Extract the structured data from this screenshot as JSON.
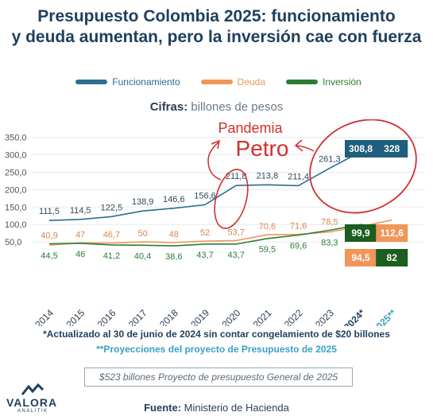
{
  "header": {
    "title_line1": "Presupuesto Colombia 2025: funcionamiento",
    "title_line2": "y deuda aumentan, pero la inversión cae con fuerza"
  },
  "legend": {
    "items": [
      {
        "label": "Funcionamiento",
        "color": "#2c6e8f"
      },
      {
        "label": "Deuda",
        "color": "#f0965a"
      },
      {
        "label": "Inversión",
        "color": "#2e7d32"
      }
    ]
  },
  "subtitle": {
    "bold": "Cifras:",
    "rest": " billones de pesos"
  },
  "annotations": {
    "pandemia": "Pandemia",
    "petro": "Petro"
  },
  "notes": {
    "note1": "*Actualizado al 30 de junio de 2024 sin contar congelamiento de $20 billones",
    "note2": "**Proyecciones del proyecto de Presupuesto de 2025",
    "box": "$523 billones Proyecto de presupuesto General de 2025"
  },
  "source": {
    "label": "Fuente:",
    "value": " Ministerio de Hacienda"
  },
  "logo": {
    "name": "VALORA",
    "sub": "ANALITIK"
  },
  "chart_data": {
    "type": "line",
    "categories": [
      "2014",
      "2015",
      "2016",
      "2017",
      "2018",
      "2019",
      "2020",
      "2021",
      "2022",
      "2023",
      "2024*",
      "2025**"
    ],
    "category_labels": [
      "2014",
      "2015",
      "2016",
      "2017",
      "2018",
      "2019",
      "2020",
      "2021",
      "2022",
      "2023",
      "2024*",
      "2025**"
    ],
    "yticks": [
      "350,0",
      "300,0",
      "250,0",
      "200,0",
      "150,0",
      "100,0",
      "50,0"
    ],
    "ytick_values": [
      350,
      300,
      250,
      200,
      150,
      100,
      50
    ],
    "ylim": [
      0,
      350
    ],
    "series": [
      {
        "name": "Funcionamiento",
        "color": "#2c6e8f",
        "values": [
          111.5,
          114.5,
          122.5,
          138.9,
          146.6,
          156.6,
          211.8,
          213.8,
          211.4,
          261.3,
          308.8,
          328
        ],
        "labels": [
          "111,5",
          "114,5",
          "122,5",
          "138,9",
          "146,6",
          "156,6",
          "211,8",
          "213,8",
          "211,4",
          "261,3",
          "308,8",
          "328"
        ]
      },
      {
        "name": "Deuda",
        "color": "#f0965a",
        "values": [
          40.9,
          47,
          46.7,
          50,
          48,
          52,
          53.7,
          70.6,
          71.6,
          78.5,
          94.5,
          112.6
        ],
        "labels": [
          "40,9",
          "47",
          "46,7",
          "50",
          "48",
          "52",
          "53,7",
          "70,6",
          "71,6",
          "78,5",
          "94,5",
          "112,6"
        ]
      },
      {
        "name": "Inversión",
        "color": "#2e7d32",
        "values": [
          44.5,
          46,
          41.2,
          40.4,
          38.6,
          43.7,
          43.7,
          59.5,
          69.6,
          83.3,
          99.9,
          82
        ],
        "labels": [
          "44,5",
          "46",
          "41,2",
          "40,4",
          "38,6",
          "43,7",
          "43,7",
          "59,5",
          "69,6",
          "83,3",
          "99,9",
          "82"
        ]
      }
    ]
  }
}
